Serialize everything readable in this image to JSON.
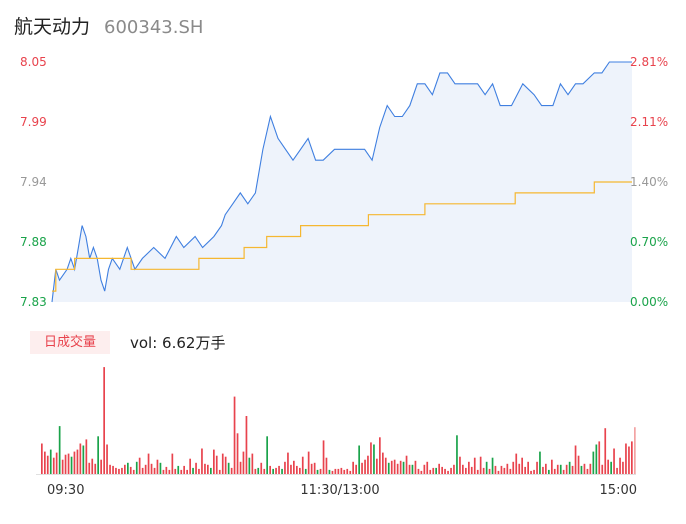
{
  "header": {
    "name": "航天动力",
    "code": "600343.SH"
  },
  "volume": {
    "tag": "日成交量",
    "label": "vol: 6.62万手"
  },
  "colors": {
    "up": "#e8434d",
    "down": "#1aa34a",
    "neutral": "#999999",
    "price_line": "#3f7fe0",
    "avg_line": "#f5b731",
    "area": "#eef3fb"
  },
  "chart_data": {
    "type": "line",
    "price_axis": {
      "labels": [
        "8.05",
        "7.99",
        "7.94",
        "7.88",
        "7.83"
      ],
      "min": 7.83,
      "max": 8.05
    },
    "pct_axis": {
      "labels": [
        "2.81%",
        "2.11%",
        "1.40%",
        "0.70%",
        "0.00%"
      ]
    },
    "x_ticks": [
      "09:30",
      "11:30/13:00",
      "15:00"
    ],
    "price_series": [
      [
        0,
        7.83
      ],
      [
        1,
        7.86
      ],
      [
        2,
        7.85
      ],
      [
        4,
        7.86
      ],
      [
        5,
        7.87
      ],
      [
        6,
        7.86
      ],
      [
        7,
        7.88
      ],
      [
        8,
        7.9
      ],
      [
        9,
        7.89
      ],
      [
        10,
        7.87
      ],
      [
        11,
        7.88
      ],
      [
        12,
        7.87
      ],
      [
        13,
        7.85
      ],
      [
        14,
        7.84
      ],
      [
        15,
        7.86
      ],
      [
        16,
        7.87
      ],
      [
        18,
        7.86
      ],
      [
        20,
        7.88
      ],
      [
        22,
        7.86
      ],
      [
        24,
        7.87
      ],
      [
        27,
        7.88
      ],
      [
        30,
        7.87
      ],
      [
        33,
        7.89
      ],
      [
        35,
        7.88
      ],
      [
        38,
        7.89
      ],
      [
        40,
        7.88
      ],
      [
        43,
        7.89
      ],
      [
        45,
        7.9
      ],
      [
        46,
        7.91
      ],
      [
        48,
        7.92
      ],
      [
        50,
        7.93
      ],
      [
        52,
        7.92
      ],
      [
        54,
        7.93
      ],
      [
        56,
        7.97
      ],
      [
        58,
        8.0
      ],
      [
        60,
        7.98
      ],
      [
        62,
        7.97
      ],
      [
        64,
        7.96
      ],
      [
        66,
        7.97
      ],
      [
        68,
        7.98
      ],
      [
        70,
        7.96
      ],
      [
        72,
        7.96
      ],
      [
        75,
        7.97
      ],
      [
        78,
        7.97
      ],
      [
        81,
        7.97
      ],
      [
        83,
        7.97
      ],
      [
        85,
        7.96
      ],
      [
        87,
        7.99
      ],
      [
        89,
        8.01
      ],
      [
        91,
        8.0
      ],
      [
        93,
        8.0
      ],
      [
        95,
        8.01
      ],
      [
        97,
        8.03
      ],
      [
        99,
        8.03
      ],
      [
        101,
        8.02
      ],
      [
        103,
        8.04
      ],
      [
        105,
        8.04
      ],
      [
        107,
        8.03
      ],
      [
        110,
        8.03
      ],
      [
        113,
        8.03
      ],
      [
        115,
        8.02
      ],
      [
        117,
        8.03
      ],
      [
        119,
        8.01
      ],
      [
        122,
        8.01
      ],
      [
        125,
        8.03
      ],
      [
        128,
        8.02
      ],
      [
        130,
        8.01
      ],
      [
        133,
        8.01
      ],
      [
        135,
        8.03
      ],
      [
        137,
        8.02
      ],
      [
        139,
        8.03
      ],
      [
        141,
        8.03
      ],
      [
        144,
        8.04
      ],
      [
        146,
        8.04
      ],
      [
        148,
        8.05
      ],
      [
        150,
        8.05
      ],
      [
        152,
        8.05
      ],
      [
        154,
        8.05
      ]
    ],
    "avg_series": [
      [
        0,
        7.84
      ],
      [
        1,
        7.86
      ],
      [
        4,
        7.86
      ],
      [
        6,
        7.87
      ],
      [
        9,
        7.87
      ],
      [
        12,
        7.87
      ],
      [
        15,
        7.87
      ],
      [
        18,
        7.87
      ],
      [
        21,
        7.86
      ],
      [
        24,
        7.86
      ],
      [
        27,
        7.86
      ],
      [
        30,
        7.86
      ],
      [
        33,
        7.86
      ],
      [
        36,
        7.86
      ],
      [
        39,
        7.87
      ],
      [
        42,
        7.87
      ],
      [
        45,
        7.87
      ],
      [
        48,
        7.87
      ],
      [
        51,
        7.88
      ],
      [
        54,
        7.88
      ],
      [
        57,
        7.89
      ],
      [
        60,
        7.89
      ],
      [
        63,
        7.89
      ],
      [
        66,
        7.9
      ],
      [
        69,
        7.9
      ],
      [
        72,
        7.9
      ],
      [
        75,
        7.9
      ],
      [
        78,
        7.9
      ],
      [
        81,
        7.9
      ],
      [
        84,
        7.91
      ],
      [
        87,
        7.91
      ],
      [
        90,
        7.91
      ],
      [
        93,
        7.91
      ],
      [
        96,
        7.91
      ],
      [
        99,
        7.92
      ],
      [
        102,
        7.92
      ],
      [
        105,
        7.92
      ],
      [
        108,
        7.92
      ],
      [
        111,
        7.92
      ],
      [
        114,
        7.92
      ],
      [
        117,
        7.92
      ],
      [
        120,
        7.92
      ],
      [
        123,
        7.93
      ],
      [
        126,
        7.93
      ],
      [
        129,
        7.93
      ],
      [
        132,
        7.93
      ],
      [
        135,
        7.93
      ],
      [
        138,
        7.93
      ],
      [
        141,
        7.93
      ],
      [
        144,
        7.94
      ],
      [
        147,
        7.94
      ],
      [
        150,
        7.94
      ],
      [
        154,
        7.94
      ]
    ],
    "volume_bars": [
      [
        0,
        30,
        "up"
      ],
      [
        1,
        22,
        "up"
      ],
      [
        2,
        18,
        "up"
      ],
      [
        3,
        24,
        "down"
      ],
      [
        4,
        16,
        "up"
      ],
      [
        5,
        21,
        "up"
      ],
      [
        6,
        47,
        "down"
      ],
      [
        7,
        14,
        "up"
      ],
      [
        8,
        19,
        "up"
      ],
      [
        9,
        20,
        "up"
      ],
      [
        10,
        17,
        "down"
      ],
      [
        11,
        22,
        "up"
      ],
      [
        12,
        24,
        "up"
      ],
      [
        13,
        30,
        "up"
      ],
      [
        14,
        28,
        "down"
      ],
      [
        15,
        34,
        "up"
      ],
      [
        16,
        11,
        "up"
      ],
      [
        17,
        15,
        "up"
      ],
      [
        18,
        10,
        "up"
      ],
      [
        19,
        37,
        "down"
      ],
      [
        20,
        14,
        "up"
      ],
      [
        21,
        105,
        "up"
      ],
      [
        22,
        29,
        "up"
      ],
      [
        23,
        9,
        "up"
      ],
      [
        24,
        8,
        "up"
      ],
      [
        25,
        6,
        "up"
      ],
      [
        26,
        5,
        "up"
      ],
      [
        27,
        6,
        "up"
      ],
      [
        28,
        9,
        "up"
      ],
      [
        29,
        11,
        "down"
      ],
      [
        30,
        7,
        "up"
      ],
      [
        31,
        4,
        "up"
      ],
      [
        32,
        12,
        "down"
      ],
      [
        33,
        16,
        "up"
      ],
      [
        34,
        6,
        "up"
      ],
      [
        35,
        9,
        "up"
      ],
      [
        36,
        20,
        "up"
      ],
      [
        37,
        10,
        "up"
      ],
      [
        38,
        6,
        "up"
      ],
      [
        39,
        14,
        "up"
      ],
      [
        40,
        11,
        "down"
      ],
      [
        41,
        4,
        "up"
      ],
      [
        42,
        7,
        "up"
      ],
      [
        43,
        4,
        "up"
      ],
      [
        44,
        20,
        "up"
      ],
      [
        45,
        5,
        "up"
      ],
      [
        46,
        8,
        "down"
      ],
      [
        47,
        4,
        "up"
      ],
      [
        48,
        8,
        "up"
      ],
      [
        49,
        4,
        "up"
      ],
      [
        50,
        15,
        "up"
      ],
      [
        51,
        6,
        "down"
      ],
      [
        52,
        11,
        "up"
      ],
      [
        53,
        5,
        "up"
      ],
      [
        54,
        25,
        "up"
      ],
      [
        55,
        10,
        "up"
      ],
      [
        56,
        9,
        "up"
      ],
      [
        57,
        6,
        "down"
      ],
      [
        58,
        24,
        "up"
      ],
      [
        59,
        18,
        "up"
      ],
      [
        60,
        4,
        "up"
      ],
      [
        61,
        20,
        "up"
      ],
      [
        62,
        17,
        "up"
      ],
      [
        63,
        11,
        "down"
      ],
      [
        64,
        6,
        "up"
      ],
      [
        65,
        76,
        "up"
      ],
      [
        66,
        40,
        "up"
      ],
      [
        67,
        12,
        "up"
      ],
      [
        68,
        22,
        "up"
      ],
      [
        69,
        57,
        "up"
      ],
      [
        70,
        16,
        "down"
      ],
      [
        71,
        20,
        "up"
      ],
      [
        72,
        5,
        "up"
      ],
      [
        73,
        6,
        "down"
      ],
      [
        74,
        11,
        "up"
      ],
      [
        75,
        5,
        "up"
      ],
      [
        76,
        37,
        "down"
      ],
      [
        77,
        8,
        "up"
      ],
      [
        78,
        5,
        "down"
      ],
      [
        79,
        6,
        "up"
      ],
      [
        80,
        8,
        "up"
      ],
      [
        81,
        5,
        "down"
      ],
      [
        82,
        12,
        "up"
      ],
      [
        83,
        21,
        "up"
      ],
      [
        84,
        9,
        "up"
      ],
      [
        85,
        13,
        "up"
      ],
      [
        86,
        8,
        "up"
      ],
      [
        87,
        6,
        "up"
      ],
      [
        88,
        17,
        "up"
      ],
      [
        89,
        5,
        "down"
      ],
      [
        90,
        22,
        "up"
      ],
      [
        91,
        10,
        "up"
      ],
      [
        92,
        11,
        "up"
      ],
      [
        93,
        4,
        "down"
      ],
      [
        94,
        5,
        "up"
      ],
      [
        95,
        33,
        "up"
      ],
      [
        96,
        16,
        "up"
      ],
      [
        97,
        4,
        "down"
      ],
      [
        98,
        3,
        "up"
      ],
      [
        99,
        5,
        "up"
      ],
      [
        100,
        5,
        "up"
      ],
      [
        101,
        6,
        "up"
      ],
      [
        102,
        4,
        "up"
      ],
      [
        103,
        5,
        "up"
      ],
      [
        104,
        3,
        "up"
      ],
      [
        105,
        12,
        "up"
      ],
      [
        106,
        9,
        "up"
      ],
      [
        107,
        28,
        "down"
      ],
      [
        108,
        11,
        "up"
      ],
      [
        109,
        14,
        "up"
      ],
      [
        110,
        18,
        "up"
      ],
      [
        111,
        31,
        "up"
      ],
      [
        112,
        29,
        "down"
      ],
      [
        113,
        15,
        "up"
      ],
      [
        114,
        36,
        "up"
      ],
      [
        115,
        21,
        "up"
      ],
      [
        116,
        16,
        "up"
      ],
      [
        117,
        11,
        "down"
      ],
      [
        118,
        13,
        "up"
      ],
      [
        119,
        14,
        "up"
      ],
      [
        120,
        10,
        "up"
      ],
      [
        121,
        13,
        "up"
      ],
      [
        122,
        12,
        "down"
      ],
      [
        123,
        18,
        "up"
      ],
      [
        124,
        9,
        "up"
      ],
      [
        125,
        9,
        "down"
      ],
      [
        126,
        13,
        "up"
      ],
      [
        127,
        5,
        "up"
      ],
      [
        128,
        3,
        "up"
      ],
      [
        129,
        9,
        "up"
      ],
      [
        130,
        12,
        "up"
      ],
      [
        131,
        4,
        "up"
      ],
      [
        132,
        6,
        "up"
      ],
      [
        133,
        6,
        "down"
      ],
      [
        134,
        10,
        "up"
      ],
      [
        135,
        7,
        "up"
      ],
      [
        136,
        5,
        "up"
      ],
      [
        137,
        3,
        "up"
      ],
      [
        138,
        6,
        "up"
      ],
      [
        139,
        9,
        "up"
      ],
      [
        140,
        38,
        "down"
      ],
      [
        141,
        17,
        "up"
      ],
      [
        142,
        9,
        "up"
      ],
      [
        143,
        6,
        "up"
      ],
      [
        144,
        12,
        "up"
      ],
      [
        145,
        7,
        "up"
      ],
      [
        146,
        16,
        "up"
      ],
      [
        147,
        4,
        "up"
      ],
      [
        148,
        17,
        "up"
      ],
      [
        149,
        6,
        "up"
      ],
      [
        150,
        12,
        "down"
      ],
      [
        151,
        5,
        "up"
      ],
      [
        152,
        16,
        "down"
      ],
      [
        153,
        8,
        "up"
      ],
      [
        154,
        3,
        "up"
      ],
      [
        155,
        8,
        "up"
      ],
      [
        156,
        6,
        "up"
      ],
      [
        157,
        10,
        "up"
      ],
      [
        158,
        5,
        "up"
      ],
      [
        159,
        12,
        "up"
      ],
      [
        160,
        20,
        "up"
      ],
      [
        161,
        10,
        "up"
      ],
      [
        162,
        16,
        "up"
      ],
      [
        163,
        7,
        "up"
      ],
      [
        164,
        12,
        "up"
      ],
      [
        165,
        3,
        "up"
      ],
      [
        166,
        4,
        "up"
      ],
      [
        167,
        12,
        "up"
      ],
      [
        168,
        22,
        "down"
      ],
      [
        169,
        7,
        "up"
      ],
      [
        170,
        10,
        "up"
      ],
      [
        171,
        4,
        "down"
      ],
      [
        172,
        14,
        "up"
      ],
      [
        173,
        5,
        "up"
      ],
      [
        174,
        9,
        "up"
      ],
      [
        175,
        9,
        "down"
      ],
      [
        176,
        4,
        "up"
      ],
      [
        177,
        9,
        "up"
      ],
      [
        178,
        12,
        "down"
      ],
      [
        179,
        8,
        "up"
      ],
      [
        180,
        28,
        "up"
      ],
      [
        181,
        18,
        "up"
      ],
      [
        182,
        8,
        "down"
      ],
      [
        183,
        10,
        "up"
      ],
      [
        184,
        5,
        "up"
      ],
      [
        185,
        10,
        "up"
      ],
      [
        186,
        22,
        "down"
      ],
      [
        187,
        29,
        "down"
      ],
      [
        188,
        32,
        "up"
      ],
      [
        189,
        9,
        "up"
      ],
      [
        190,
        45,
        "up"
      ],
      [
        191,
        14,
        "up"
      ],
      [
        192,
        12,
        "down"
      ],
      [
        193,
        25,
        "up"
      ],
      [
        194,
        6,
        "up"
      ],
      [
        195,
        16,
        "up"
      ],
      [
        196,
        12,
        "up"
      ],
      [
        197,
        30,
        "up"
      ],
      [
        198,
        27,
        "up"
      ],
      [
        199,
        32,
        "up"
      ],
      [
        200,
        46,
        "neutral"
      ]
    ]
  }
}
